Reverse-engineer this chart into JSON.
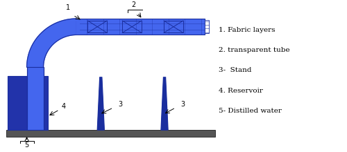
{
  "fig_width": 5.0,
  "fig_height": 2.2,
  "dpi": 100,
  "bg_color": "#ffffff",
  "blue_dark": "#1a2e9e",
  "blue_mid": "#2244cc",
  "blue_bright": "#4466ee",
  "blue_fill": "#6688ff",
  "blue_light": "#aabbff",
  "blue_res": "#2233aa",
  "gray_floor": "#555555",
  "legend_items": [
    "1. Fabric layers",
    "2. transparent tube",
    "3-  Stand",
    "4. Reservoir",
    "5- Distilled water"
  ]
}
